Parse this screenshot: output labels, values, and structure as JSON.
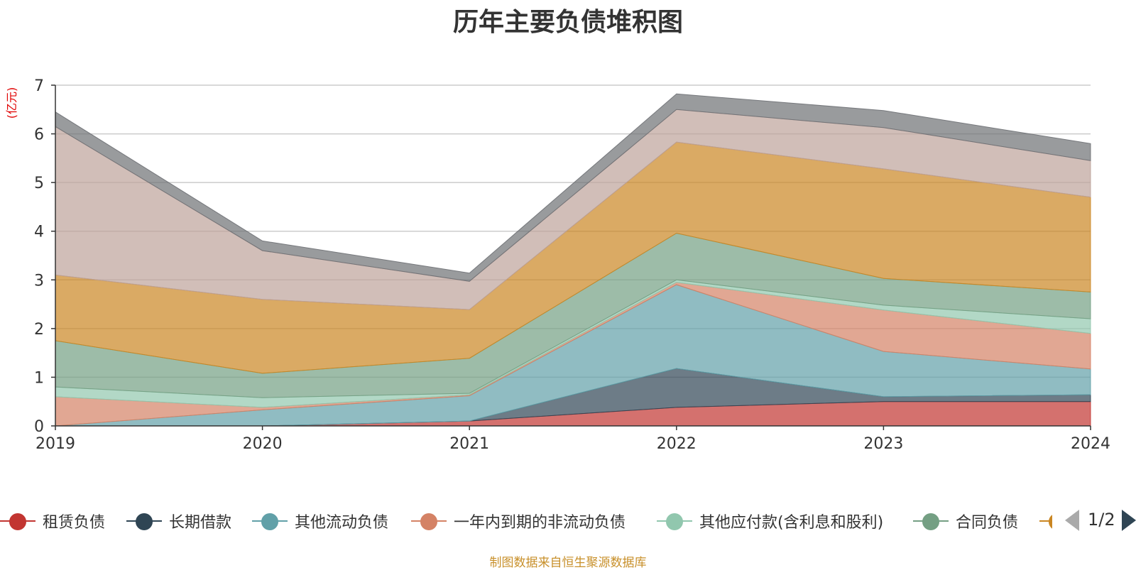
{
  "chart_data": {
    "type": "area",
    "stacked": true,
    "title": "历年主要负债堆积图",
    "ylabel": "(亿元)",
    "ylim": [
      0,
      7
    ],
    "yticks": [
      "0",
      "1",
      "2",
      "3",
      "4",
      "5",
      "6",
      "7"
    ],
    "categories": [
      "2019",
      "2020",
      "2021",
      "2022",
      "2023",
      "2024"
    ],
    "grid": true,
    "legend_position": "bottom",
    "series": [
      {
        "name": "租赁负债",
        "color": "#c23531",
        "values": [
          0.0,
          0.0,
          0.1,
          0.38,
          0.5,
          0.5
        ]
      },
      {
        "name": "长期借款",
        "color": "#2f4554",
        "values": [
          0.0,
          0.0,
          0.0,
          0.8,
          0.1,
          0.14
        ]
      },
      {
        "name": "其他流动负债",
        "color": "#61a0a8",
        "values": [
          0.0,
          0.33,
          0.52,
          1.72,
          0.93,
          0.53
        ]
      },
      {
        "name": "一年内到期的非流动负债",
        "color": "#d48265",
        "values": [
          0.6,
          0.05,
          0.02,
          0.05,
          0.85,
          0.73
        ]
      },
      {
        "name": "其他应付款(含利息和股利)",
        "color": "#91c7ae",
        "values": [
          0.2,
          0.2,
          0.03,
          0.05,
          0.1,
          0.3
        ]
      },
      {
        "name": "合同负债",
        "color": "#749f83",
        "values": [
          0.95,
          0.5,
          0.72,
          0.96,
          0.55,
          0.55
        ]
      },
      {
        "name": "",
        "color": "#ca8622",
        "values": [
          1.35,
          1.52,
          1.0,
          1.87,
          2.25,
          1.95
        ]
      },
      {
        "name": "",
        "color": "#bda29a",
        "values": [
          3.05,
          1.0,
          0.58,
          0.67,
          0.85,
          0.75
        ]
      },
      {
        "name": "",
        "color": "#6e7074",
        "values": [
          0.3,
          0.2,
          0.17,
          0.32,
          0.35,
          0.35
        ]
      }
    ]
  },
  "legend": {
    "items": [
      {
        "label": "租赁负债",
        "color": "#c23531"
      },
      {
        "label": "长期借款",
        "color": "#2f4554"
      },
      {
        "label": "其他流动负债",
        "color": "#61a0a8"
      },
      {
        "label": "一年内到期的非流动负债",
        "color": "#d48265"
      },
      {
        "label": "其他应付款(含利息和股利)",
        "color": "#91c7ae"
      },
      {
        "label": "合同负债",
        "color": "#749f83"
      }
    ],
    "partial_color": "#ca8622",
    "page_indicator": "1/2"
  },
  "source_note": "制图数据来自恒生聚源数据库"
}
